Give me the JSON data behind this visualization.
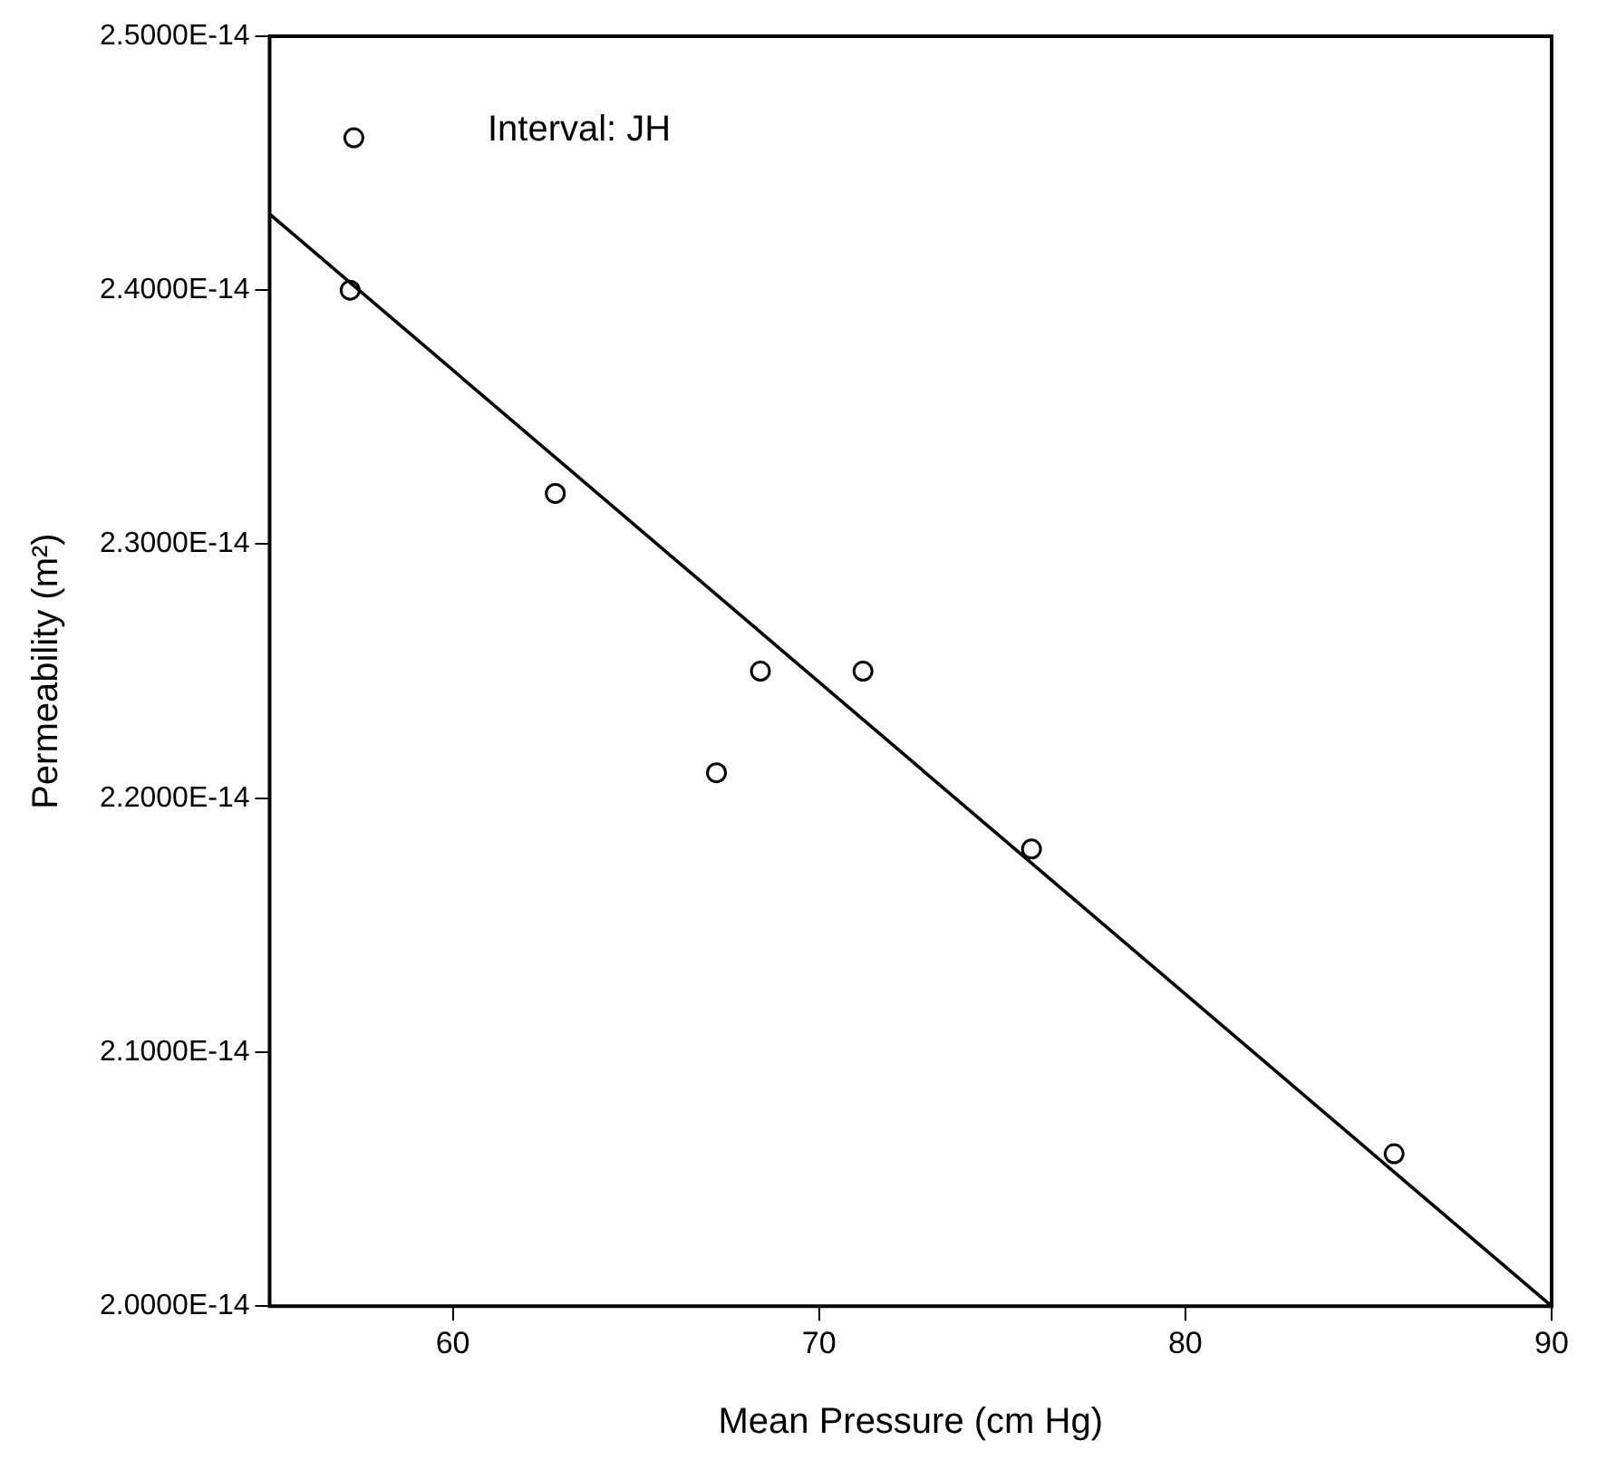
{
  "chart_data": {
    "type": "scatter",
    "xlabel": "Mean Pressure (cm Hg)",
    "ylabel": "Permeability (m²)",
    "annotations": [
      "Interval: JH"
    ],
    "xlim": [
      55,
      90
    ],
    "xticks": [
      60,
      70,
      80,
      90
    ],
    "ylim": [
      2e-14,
      2.5e-14
    ],
    "yticks": [
      {
        "value": 2e-14,
        "label": "2.0000E-14"
      },
      {
        "value": 2.1e-14,
        "label": "2.1000E-14"
      },
      {
        "value": 2.2e-14,
        "label": "2.2000E-14"
      },
      {
        "value": 2.3e-14,
        "label": "2.3000E-14"
      },
      {
        "value": 2.4e-14,
        "label": "2.4000E-14"
      },
      {
        "value": 2.5e-14,
        "label": "2.5000E-14"
      }
    ],
    "grid": false,
    "series": [
      {
        "type": "scatter",
        "marker": "circle",
        "color": "#000000",
        "x": [
          57.3,
          57.2,
          62.8,
          67.2,
          68.4,
          71.2,
          75.8,
          85.7
        ],
        "values": [
          2.46e-14,
          2.4e-14,
          2.32e-14,
          2.21e-14,
          2.25e-14,
          2.25e-14,
          2.18e-14,
          2.06e-14
        ]
      },
      {
        "type": "line",
        "color": "#000000",
        "x": [
          55,
          90
        ],
        "values": [
          2.43e-14,
          2e-14
        ]
      }
    ]
  }
}
